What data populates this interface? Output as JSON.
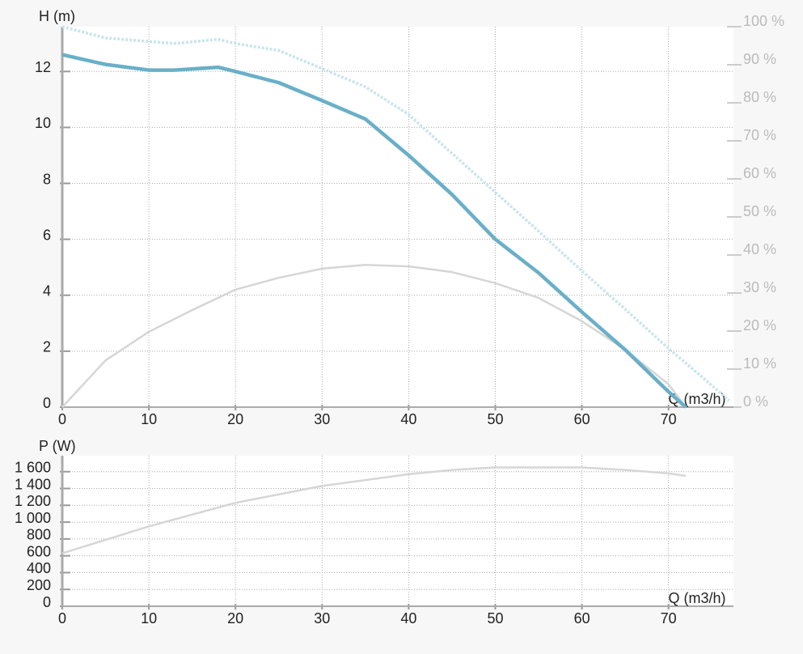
{
  "chart_data": [
    {
      "type": "line",
      "y_label": "H (m)",
      "x_label": "Q (m3/h)",
      "xlim": [
        0,
        77.5
      ],
      "xticks": [
        0,
        10,
        20,
        30,
        40,
        50,
        60,
        70
      ],
      "ylim": [
        0,
        13.6
      ],
      "yticks": [
        0,
        2,
        4,
        6,
        8,
        10,
        12
      ],
      "y2lim": [
        0,
        100
      ],
      "y2ticks": [
        {
          "value": 0,
          "label": "0 %"
        },
        {
          "value": 10,
          "label": "10 %"
        },
        {
          "value": 20,
          "label": "20 %"
        },
        {
          "value": 30,
          "label": "30 %"
        },
        {
          "value": 40,
          "label": "40 %"
        },
        {
          "value": 50,
          "label": "50 %"
        },
        {
          "value": 60,
          "label": "60 %"
        },
        {
          "value": 70,
          "label": "70 %"
        },
        {
          "value": 80,
          "label": "80 %"
        },
        {
          "value": 90,
          "label": "90 %"
        },
        {
          "value": 100,
          "label": "100 %"
        }
      ],
      "grid": true,
      "series": [
        {
          "color": "#c9e4ee",
          "style": "dotted",
          "x": [
            0,
            5,
            10,
            13,
            18,
            20,
            25,
            30,
            35,
            40,
            45,
            50,
            55,
            60,
            65,
            70,
            75,
            77
          ],
          "values": [
            13.6,
            13.2,
            13.07,
            13.0,
            13.15,
            13.0,
            12.75,
            12.1,
            11.45,
            10.46,
            9.07,
            7.68,
            6.29,
            4.87,
            3.5,
            2.1,
            0.78,
            0.23
          ]
        },
        {
          "color": "#d6d6d6",
          "style": "solid",
          "axis": "y2",
          "x": [
            0,
            5,
            10,
            15,
            20,
            25,
            30,
            35,
            40,
            45,
            50,
            55,
            60,
            65,
            70,
            72
          ],
          "values": [
            0,
            12.3,
            19.8,
            25.5,
            30.9,
            34,
            36.4,
            37.4,
            37,
            35.5,
            32.6,
            28.7,
            22.6,
            15.1,
            6,
            0
          ]
        },
        {
          "color": "#6aafc8",
          "style": "thick",
          "x": [
            0,
            5,
            10,
            13,
            18,
            20,
            25,
            30,
            35,
            40,
            45,
            50,
            55,
            60,
            65,
            70,
            72
          ],
          "values": [
            12.6,
            12.25,
            12.05,
            12.05,
            12.15,
            12.0,
            11.6,
            10.96,
            10.3,
            9.0,
            7.6,
            6.0,
            4.8,
            3.4,
            2.05,
            0.55,
            0
          ]
        }
      ]
    },
    {
      "type": "line",
      "y_label": "P (W)",
      "x_label": "Q (m3/h)",
      "xlim": [
        0,
        77.5
      ],
      "xticks": [
        0,
        10,
        20,
        30,
        40,
        50,
        60,
        70
      ],
      "ylim": [
        0,
        1790
      ],
      "yticks": [
        0,
        200,
        400,
        600,
        800,
        {
          "value": 1000,
          "label": "1 000"
        },
        {
          "value": 1200,
          "label": "1 200"
        },
        {
          "value": 1400,
          "label": "1 400"
        },
        {
          "value": 1600,
          "label": "1 600"
        }
      ],
      "grid": true,
      "series": [
        {
          "color": "#d6d6d6",
          "style": "solid",
          "x": [
            0,
            10,
            20,
            30,
            40,
            45,
            50,
            60,
            65,
            70,
            72
          ],
          "values": [
            630,
            950,
            1230,
            1430,
            1570,
            1620,
            1650,
            1650,
            1620,
            1580,
            1550
          ]
        }
      ]
    }
  ]
}
